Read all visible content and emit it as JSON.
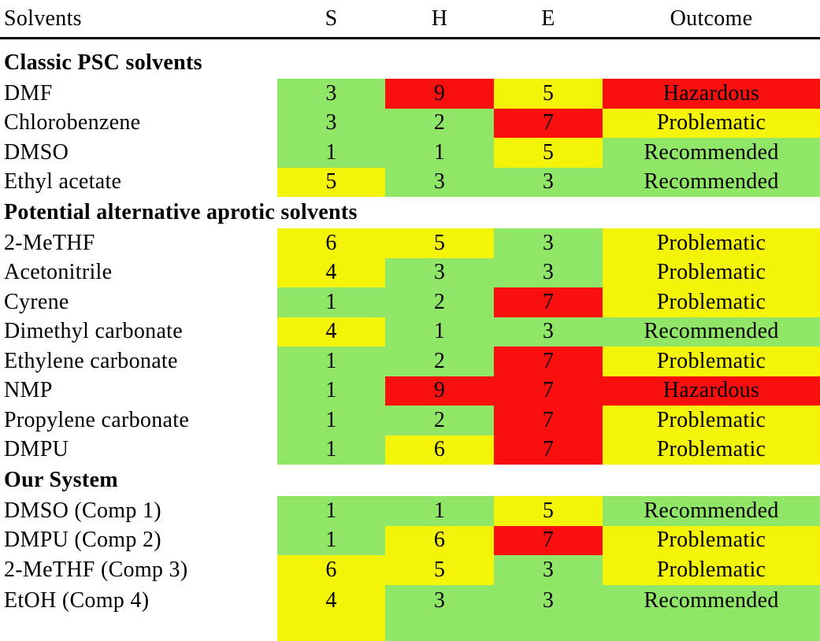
{
  "palette": {
    "green": "#90e667",
    "yellow": "#f4f409",
    "red": "#fa0f0f"
  },
  "header": {
    "solvents": "Solvents",
    "s": "S",
    "h": "H",
    "e": "E",
    "outcome": "Outcome"
  },
  "sections": [
    {
      "title": "Classic PSC solvents",
      "rows": [
        {
          "name": "DMF",
          "s": "3",
          "s_color": "green",
          "h": "9",
          "h_color": "red",
          "e": "5",
          "e_color": "yellow",
          "outcome": "Hazardous",
          "outcome_color": "red"
        },
        {
          "name": "Chlorobenzene",
          "s": "3",
          "s_color": "green",
          "h": "2",
          "h_color": "green",
          "e": "7",
          "e_color": "red",
          "outcome": "Problematic",
          "outcome_color": "yellow"
        },
        {
          "name": "DMSO",
          "s": "1",
          "s_color": "green",
          "h": "1",
          "h_color": "green",
          "e": "5",
          "e_color": "yellow",
          "outcome": "Recommended",
          "outcome_color": "green"
        },
        {
          "name": "Ethyl acetate",
          "s": "5",
          "s_color": "yellow",
          "h": "3",
          "h_color": "green",
          "e": "3",
          "e_color": "green",
          "outcome": "Recommended",
          "outcome_color": "green"
        }
      ]
    },
    {
      "title": "Potential alternative aprotic solvents",
      "rows": [
        {
          "name": "2-MeTHF",
          "s": "6",
          "s_color": "yellow",
          "h": "5",
          "h_color": "yellow",
          "e": "3",
          "e_color": "green",
          "outcome": "Problematic",
          "outcome_color": "yellow"
        },
        {
          "name": "Acetonitrile",
          "s": "4",
          "s_color": "yellow",
          "h": "3",
          "h_color": "green",
          "e": "3",
          "e_color": "green",
          "outcome": "Problematic",
          "outcome_color": "yellow"
        },
        {
          "name": "Cyrene",
          "s": "1",
          "s_color": "green",
          "h": "2",
          "h_color": "green",
          "e": "7",
          "e_color": "red",
          "outcome": "Problematic",
          "outcome_color": "yellow"
        },
        {
          "name": "Dimethyl carbonate",
          "s": "4",
          "s_color": "yellow",
          "h": "1",
          "h_color": "green",
          "e": "3",
          "e_color": "green",
          "outcome": "Recommended",
          "outcome_color": "green"
        },
        {
          "name": "Ethylene carbonate",
          "s": "1",
          "s_color": "green",
          "h": "2",
          "h_color": "green",
          "e": "7",
          "e_color": "red",
          "outcome": "Problematic",
          "outcome_color": "yellow"
        },
        {
          "name": "NMP",
          "s": "1",
          "s_color": "green",
          "h": "9",
          "h_color": "red",
          "e": "7",
          "e_color": "red",
          "outcome": "Hazardous",
          "outcome_color": "red"
        },
        {
          "name": "Propylene carbonate",
          "s": "1",
          "s_color": "green",
          "h": "2",
          "h_color": "green",
          "e": "7",
          "e_color": "red",
          "outcome": "Problematic",
          "outcome_color": "yellow"
        },
        {
          "name": "DMPU",
          "s": "1",
          "s_color": "green",
          "h": "6",
          "h_color": "yellow",
          "e": "7",
          "e_color": "red",
          "outcome": "Problematic",
          "outcome_color": "yellow"
        }
      ]
    },
    {
      "title": "Our System",
      "rows": [
        {
          "name": "DMSO (Comp 1)",
          "s": "1",
          "s_color": "green",
          "h": "1",
          "h_color": "green",
          "e": "5",
          "e_color": "yellow",
          "outcome": "Recommended",
          "outcome_color": "green"
        },
        {
          "name": "DMPU (Comp 2)",
          "s": "1",
          "s_color": "green",
          "h": "6",
          "h_color": "yellow",
          "e": "7",
          "e_color": "red",
          "outcome": "Problematic",
          "outcome_color": "yellow"
        },
        {
          "name": "2-MeTHF (Comp 3)",
          "s": "6",
          "s_color": "yellow",
          "h": "5",
          "h_color": "yellow",
          "e": "3",
          "e_color": "green",
          "outcome": "Problematic",
          "outcome_color": "yellow"
        },
        {
          "name": "EtOH (Comp 4)",
          "s": "4",
          "s_color": "yellow",
          "h": "3",
          "h_color": "green",
          "e": "3",
          "e_color": "green",
          "outcome": "Recommended",
          "outcome_color": "green"
        }
      ]
    }
  ]
}
